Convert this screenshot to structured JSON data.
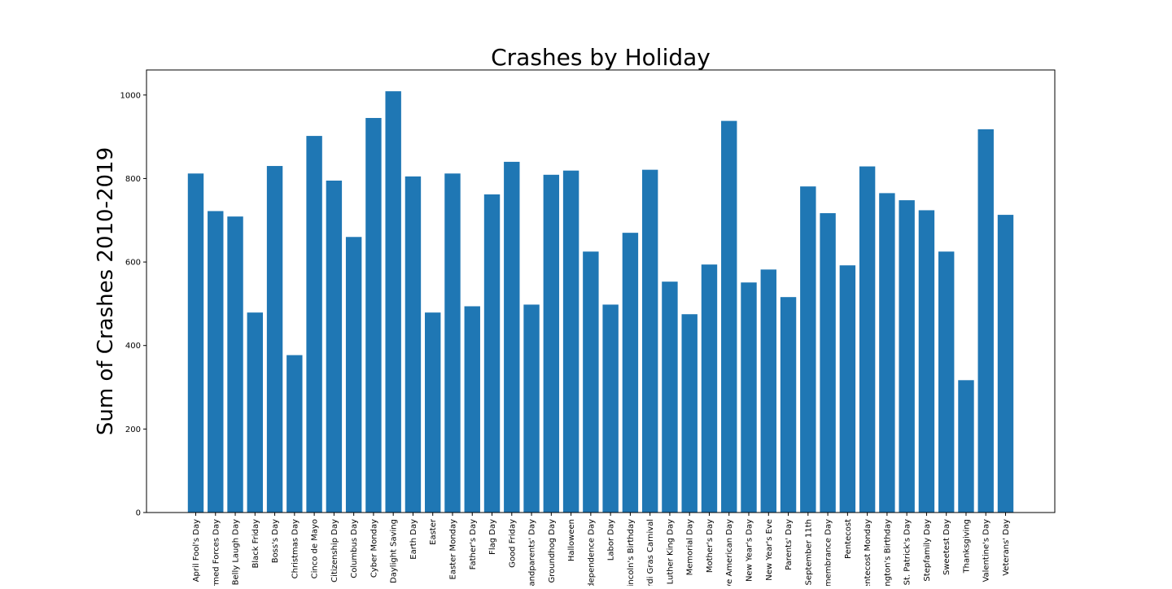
{
  "chart_data": {
    "type": "bar",
    "title": "Crashes by Holiday",
    "xlabel": "",
    "ylabel": "Sum of Crashes 2010-2019",
    "ylim": [
      0,
      1060
    ],
    "yticks": [
      0,
      200,
      400,
      600,
      800,
      1000
    ],
    "grid": false,
    "bar_color": "#1f77b4",
    "categories": [
      "April Fool's Day",
      "Armed Forces Day",
      "Belly Laugh Day",
      "Black Friday",
      "Boss's Day",
      "Christmas Day",
      "Cinco de Mayo",
      "Citizenship Day",
      "Columbus Day",
      "Cyber Monday",
      "Daylight Saving",
      "Earth Day",
      "Easter",
      "Easter Monday",
      "Father's Day",
      "Flag Day",
      "Good Friday",
      "Grandparents' Day",
      "Groundhog Day",
      "Halloween",
      "Independence Day",
      "Labor Day",
      "Lincoln's Birthday",
      "Mardi Gras Carnival",
      "Martin Luther King Day",
      "Memorial Day",
      "Mother's Day",
      "Native American Day",
      "New Year's Day",
      "New Year's Eve",
      "Parents' Day",
      "September 11th",
      "Remembrance Day",
      "Pentecost",
      "Pentecost Monday",
      "Washington's Birthday",
      "St. Patrick's Day",
      "Stepfamily Day",
      "Sweetest Day",
      "Thanksgiving",
      "Valentine's Day",
      "Veterans' Day"
    ],
    "values": [
      812,
      722,
      709,
      479,
      830,
      377,
      902,
      795,
      660,
      945,
      1009,
      805,
      479,
      812,
      494,
      762,
      840,
      498,
      809,
      819,
      625,
      498,
      670,
      821,
      553,
      475,
      594,
      938,
      551,
      582,
      516,
      781,
      717,
      592,
      829,
      765,
      748,
      724,
      625,
      317,
      918,
      713
    ]
  }
}
